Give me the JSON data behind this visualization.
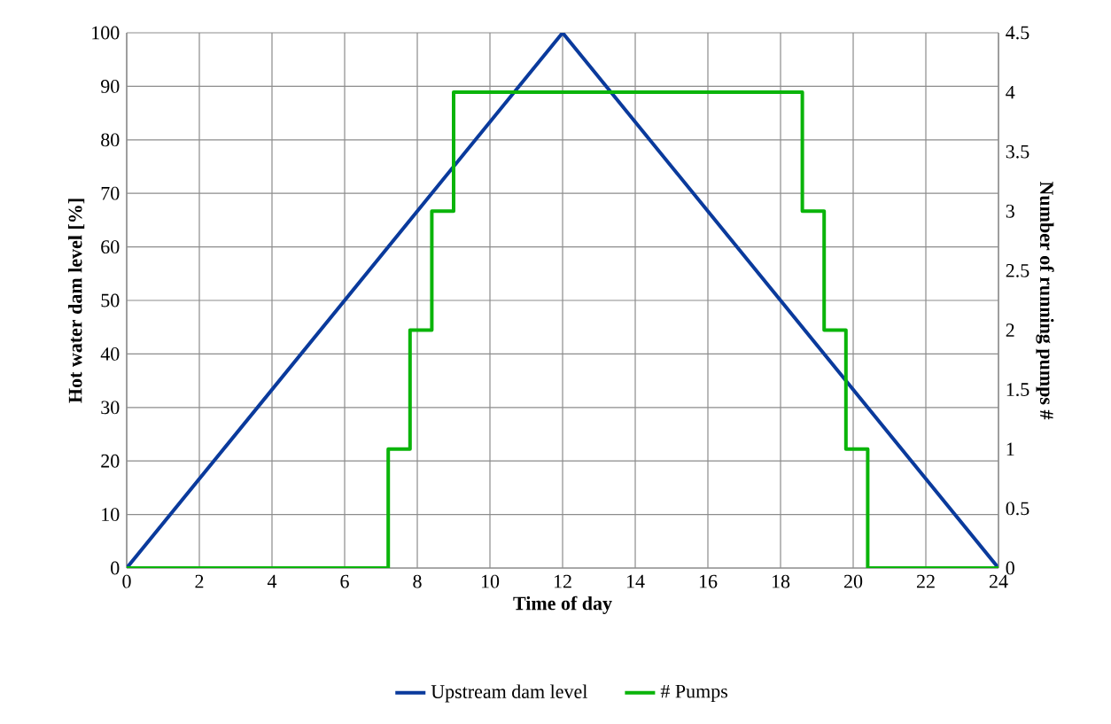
{
  "chart_data": {
    "type": "line",
    "xlabel": "Time of day",
    "ylabel": "Hot water dam level [%]",
    "y2label": "Number of running pumps #",
    "xlim": [
      0,
      24
    ],
    "xticks": [
      0,
      2,
      4,
      6,
      8,
      10,
      12,
      14,
      16,
      18,
      20,
      22,
      24
    ],
    "ylim": [
      0,
      100
    ],
    "yticks": [
      0,
      10,
      20,
      30,
      40,
      50,
      60,
      70,
      80,
      90,
      100
    ],
    "y2lim": [
      0,
      4.5
    ],
    "y2ticks": [
      0,
      0.5,
      1,
      1.5,
      2,
      2.5,
      3,
      3.5,
      4,
      4.5
    ],
    "grid": true,
    "legend": "bottom",
    "series": [
      {
        "name": "Upstream dam level",
        "color": "#0a3a9c",
        "x": [
          0,
          12,
          24
        ],
        "values": [
          0,
          100,
          0
        ]
      },
      {
        "name": "# Pumps",
        "color": "#0ab40a",
        "axis": "y2",
        "x": [
          0,
          7.2,
          7.2,
          7.8,
          7.8,
          8.4,
          8.4,
          9.0,
          9.0,
          18.6,
          18.6,
          19.2,
          19.2,
          19.8,
          19.8,
          20.4,
          20.4,
          24
        ],
        "values": [
          0,
          0,
          1,
          1,
          2,
          2,
          3,
          3,
          4,
          4,
          3,
          3,
          2,
          2,
          1,
          1,
          0,
          0
        ]
      }
    ]
  }
}
